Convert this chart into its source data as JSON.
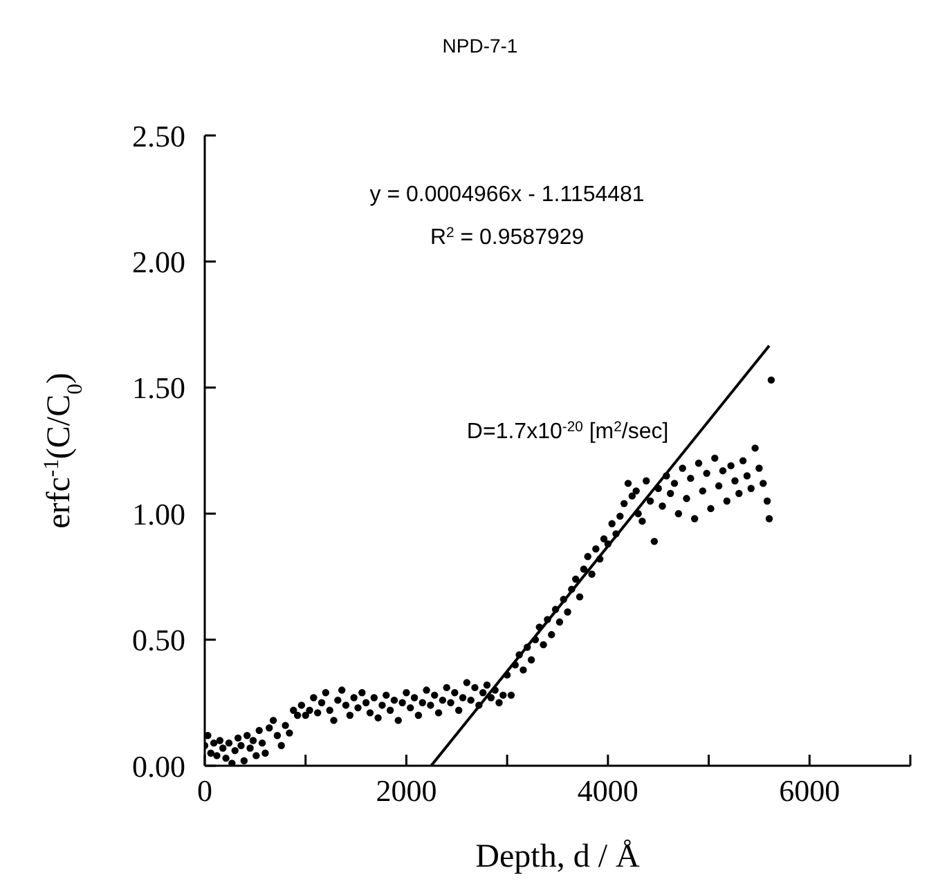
{
  "chart_data": {
    "type": "scatter",
    "title": "NPD-7-1",
    "xlabel": "Depth, d / Å",
    "ylabel": "erfc$^{-1}$(C/C$_{0}$)",
    "annotations": [
      "y = 0.0004966x - 1.1154481",
      "R$^{2}$ = 0.9587929",
      "D=1.7x10$^{-20}$ [m$^{2}$/sec]"
    ],
    "xlim": [
      0,
      7000
    ],
    "ylim": [
      0,
      2.5
    ],
    "xticks": [
      0,
      {
        "value": 1000,
        "label": null
      },
      2000,
      {
        "value": 3000,
        "label": null
      },
      4000,
      {
        "value": 5000,
        "label": null
      },
      6000,
      {
        "value": 7000,
        "label": null
      }
    ],
    "yticks": [
      {
        "value": 0,
        "label": "0.00"
      },
      {
        "value": 0.5,
        "label": "0.50"
      },
      {
        "value": 1,
        "label": "1.00"
      },
      {
        "value": 1.5,
        "label": "1.50"
      },
      {
        "value": 2,
        "label": "2.00"
      },
      {
        "value": 2.5,
        "label": "2.50"
      }
    ],
    "marker": "circle",
    "series": [
      {
        "color": "#000000",
        "x": [
          0,
          30,
          60,
          90,
          120,
          150,
          180,
          210,
          240,
          270,
          300,
          330,
          360,
          390,
          420,
          450,
          480,
          510,
          540,
          570,
          600,
          640,
          680,
          720,
          760,
          800,
          840,
          880,
          920,
          960,
          1000,
          1040,
          1080,
          1120,
          1160,
          1200,
          1240,
          1280,
          1320,
          1360,
          1400,
          1440,
          1480,
          1520,
          1560,
          1600,
          1640,
          1680,
          1720,
          1760,
          1800,
          1840,
          1880,
          1920,
          1960,
          2000,
          2040,
          2080,
          2120,
          2160,
          2200,
          2240,
          2280,
          2320,
          2360,
          2400,
          2440,
          2480,
          2520,
          2560,
          2600,
          2640,
          2680,
          2720,
          2760,
          2800,
          2840,
          2880,
          2920,
          2960
        ],
        "values": [
          0.08,
          0.12,
          0.05,
          0.09,
          0.04,
          0.1,
          0.07,
          0.03,
          0.09,
          0.01,
          0.06,
          0.11,
          0.08,
          0.02,
          0.12,
          0.07,
          0.1,
          0.04,
          0.14,
          0.09,
          0.05,
          0.15,
          0.18,
          0.12,
          0.08,
          0.16,
          0.13,
          0.22,
          0.2,
          0.24,
          0.2,
          0.22,
          0.27,
          0.21,
          0.25,
          0.29,
          0.22,
          0.18,
          0.26,
          0.3,
          0.24,
          0.2,
          0.27,
          0.23,
          0.29,
          0.25,
          0.21,
          0.27,
          0.19,
          0.24,
          0.28,
          0.22,
          0.26,
          0.18,
          0.25,
          0.29,
          0.23,
          0.27,
          0.2,
          0.25,
          0.3,
          0.24,
          0.28,
          0.21,
          0.26,
          0.31,
          0.25,
          0.29,
          0.22,
          0.27,
          0.33,
          0.26,
          0.31,
          0.24,
          0.29,
          0.32,
          0.27,
          0.3,
          0.25,
          0.28
        ]
      },
      {
        "color": "#000000",
        "x": [
          3000,
          3040,
          3080,
          3120,
          3160,
          3200,
          3240,
          3280,
          3320,
          3360,
          3400,
          3440,
          3480,
          3520,
          3560,
          3600,
          3640,
          3680,
          3720,
          3760,
          3800,
          3840,
          3880,
          3920,
          3960,
          4000,
          4040,
          4080,
          4120,
          4160,
          4200,
          4240,
          4280
        ],
        "values": [
          0.36,
          0.28,
          0.4,
          0.44,
          0.38,
          0.47,
          0.42,
          0.5,
          0.55,
          0.48,
          0.58,
          0.52,
          0.62,
          0.57,
          0.66,
          0.61,
          0.7,
          0.74,
          0.67,
          0.78,
          0.83,
          0.76,
          0.86,
          0.82,
          0.9,
          0.88,
          0.96,
          0.92,
          0.99,
          1.04,
          1.12,
          1.07,
          1.09
        ]
      },
      {
        "color": "#000000",
        "x": [
          4300,
          4340,
          4380,
          4420,
          4460,
          4500,
          4540,
          4580,
          4620,
          4660,
          4700,
          4740,
          4780,
          4820,
          4860,
          4900,
          4940,
          4980,
          5020,
          5060,
          5100,
          5140,
          5180,
          5220,
          5260,
          5300,
          5340,
          5380,
          5420,
          5460,
          5500,
          5540,
          5580,
          5600,
          5620
        ],
        "values": [
          1.0,
          0.97,
          1.13,
          1.05,
          0.89,
          1.1,
          1.03,
          1.15,
          1.08,
          1.12,
          1.0,
          1.18,
          1.06,
          1.14,
          0.98,
          1.2,
          1.09,
          1.16,
          1.02,
          1.22,
          1.11,
          1.17,
          1.05,
          1.19,
          1.13,
          1.08,
          1.21,
          1.15,
          1.1,
          1.26,
          1.18,
          1.12,
          1.05,
          0.98,
          1.53
        ]
      },
      {
        "type": "line",
        "marker": "none",
        "color": "#000000",
        "x": [
          2246,
          5600
        ],
        "values": [
          0,
          1.666
        ]
      }
    ]
  }
}
